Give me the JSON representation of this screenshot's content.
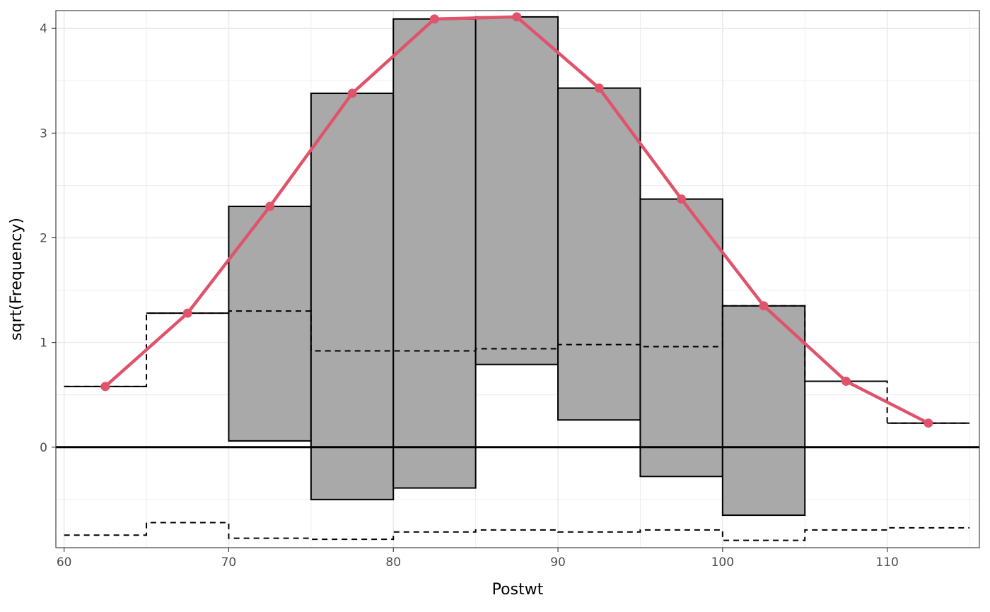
{
  "chart_data": {
    "type": "rootogram",
    "title": "",
    "xlabel": "Postwt",
    "ylabel": "sqrt(Frequency)",
    "xlim": [
      59.5,
      115.6
    ],
    "ylim": [
      -0.96,
      4.17
    ],
    "x_ticks": [
      60,
      70,
      80,
      90,
      100,
      110
    ],
    "y_ticks": [
      0,
      1,
      2,
      3,
      4
    ],
    "x_tick_labels": [
      "60",
      "70",
      "80",
      "90",
      "100",
      "110"
    ],
    "y_tick_labels": [
      "0",
      "1",
      "2",
      "3",
      "4"
    ],
    "grid": true,
    "colors": {
      "expected_line": "#DF536B",
      "bar_fill": "#A9A9A9",
      "bar_stroke": "#000000",
      "grid": "#EBEBEB",
      "tick_text": "#4D4D4D"
    },
    "bins": [
      {
        "x0": 60,
        "x1": 65,
        "bar_top": 0.58,
        "bar_bottom": 0.58,
        "dashed_upper": 0.58,
        "dashed_lower": -0.84
      },
      {
        "x0": 65,
        "x1": 70,
        "bar_top": 1.28,
        "bar_bottom": 1.28,
        "dashed_upper": 1.28,
        "dashed_lower": -0.72
      },
      {
        "x0": 70,
        "x1": 75,
        "bar_top": 2.3,
        "bar_bottom": 0.06,
        "dashed_upper": 1.3,
        "dashed_lower": -0.87
      },
      {
        "x0": 75,
        "x1": 80,
        "bar_top": 3.38,
        "bar_bottom": -0.5,
        "dashed_upper": 0.92,
        "dashed_lower": -0.88
      },
      {
        "x0": 80,
        "x1": 85,
        "bar_top": 4.09,
        "bar_bottom": -0.39,
        "dashed_upper": 0.92,
        "dashed_lower": -0.81
      },
      {
        "x0": 85,
        "x1": 90,
        "bar_top": 4.11,
        "bar_bottom": 0.79,
        "dashed_upper": 0.94,
        "dashed_lower": -0.79
      },
      {
        "x0": 90,
        "x1": 95,
        "bar_top": 3.43,
        "bar_bottom": 0.26,
        "dashed_upper": 0.98,
        "dashed_lower": -0.81
      },
      {
        "x0": 95,
        "x1": 100,
        "bar_top": 2.37,
        "bar_bottom": -0.28,
        "dashed_upper": 0.96,
        "dashed_lower": -0.79
      },
      {
        "x0": 100,
        "x1": 105,
        "bar_top": 1.35,
        "bar_bottom": -0.65,
        "dashed_upper": 1.35,
        "dashed_lower": -0.89
      },
      {
        "x0": 105,
        "x1": 110,
        "bar_top": 0.63,
        "bar_bottom": 0.63,
        "dashed_upper": 0.63,
        "dashed_lower": -0.79
      },
      {
        "x0": 110,
        "x1": 115,
        "bar_top": 0.23,
        "bar_bottom": 0.23,
        "dashed_upper": 0.23,
        "dashed_lower": -0.77
      }
    ],
    "expected_points": {
      "x": [
        62.5,
        67.5,
        72.5,
        77.5,
        82.5,
        87.5,
        92.5,
        97.5,
        102.5,
        107.5,
        112.5
      ],
      "y": [
        0.58,
        1.28,
        2.3,
        3.38,
        4.09,
        4.11,
        3.43,
        2.37,
        1.35,
        0.63,
        0.23
      ]
    }
  }
}
